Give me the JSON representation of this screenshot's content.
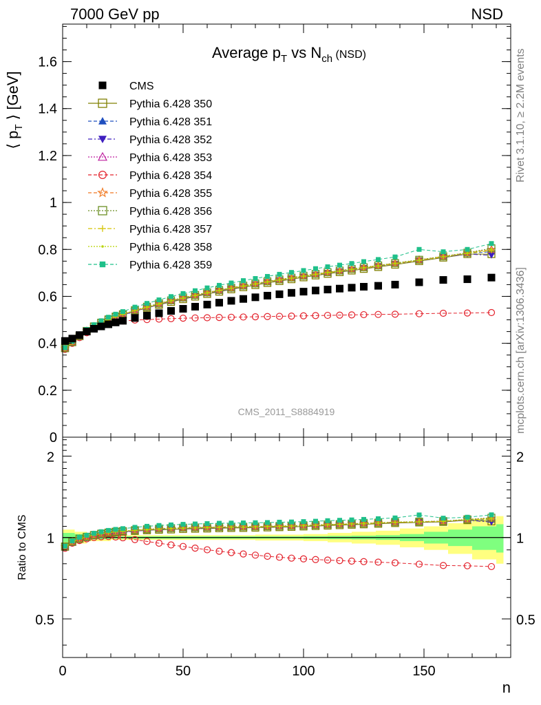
{
  "header": {
    "left": "7000 GeV pp",
    "right": "NSD"
  },
  "side_labels": {
    "top": "Rivet 3.1.10, ≥ 2.2M events",
    "bottom": "mcplots.cern.ch [arXiv:1306.3436]"
  },
  "watermark": "CMS_2011_S8884919",
  "chart_data": [
    {
      "type": "scatter",
      "title": "Average p_T vs N_ch (NSD)",
      "title_parts": {
        "main": "Average p",
        "sub1": "T",
        "mid": " vs N",
        "sub2": "ch",
        "tail": " (NSD)"
      },
      "xlabel": "n",
      "ylabel": "⟨ p_T ⟩ [GeV]",
      "ylabel_parts": {
        "left": "⟨ p",
        "sub": "T",
        "right": " ⟩ [GeV]"
      },
      "xlim": [
        0,
        186
      ],
      "ylim": [
        0,
        1.76
      ],
      "x_ticks": [
        0,
        50,
        100,
        150
      ],
      "x_tick_labels": [
        "0",
        "50",
        "100",
        "150"
      ],
      "y_ticks": [
        0,
        0.2,
        0.4,
        0.6,
        0.8,
        1.0,
        1.2,
        1.4,
        1.6
      ],
      "y_tick_labels": [
        "0",
        "0.2",
        "0.4",
        "0.6",
        "0.8",
        "1",
        "1.2",
        "1.4",
        "1.6"
      ],
      "legend_position": "top-left",
      "x": [
        1,
        4,
        7,
        10,
        13,
        16,
        19,
        22,
        25,
        30,
        35,
        40,
        45,
        50,
        55,
        60,
        65,
        70,
        75,
        80,
        85,
        90,
        95,
        100,
        105,
        110,
        115,
        120,
        125,
        131,
        138,
        148,
        158,
        168,
        178
      ],
      "cms": {
        "name": "CMS",
        "values": [
          0.41,
          0.42,
          0.435,
          0.45,
          0.462,
          0.472,
          0.481,
          0.489,
          0.496,
          0.508,
          0.518,
          0.528,
          0.538,
          0.547,
          0.556,
          0.565,
          0.573,
          0.581,
          0.589,
          0.596,
          0.603,
          0.609,
          0.615,
          0.62,
          0.625,
          0.629,
          0.633,
          0.637,
          0.641,
          0.645,
          0.65,
          0.66,
          0.67,
          0.673,
          0.68
        ]
      },
      "series": [
        {
          "name": "Pythia 6.428 350",
          "marker": "open-square",
          "color": "#808000",
          "dash": "",
          "values": [
            0.38,
            0.405,
            0.43,
            0.452,
            0.471,
            0.487,
            0.5,
            0.511,
            0.521,
            0.537,
            0.551,
            0.564,
            0.576,
            0.588,
            0.599,
            0.61,
            0.62,
            0.63,
            0.639,
            0.648,
            0.657,
            0.665,
            0.673,
            0.681,
            0.689,
            0.696,
            0.703,
            0.71,
            0.717,
            0.725,
            0.735,
            0.75,
            0.765,
            0.78,
            0.78
          ]
        },
        {
          "name": "Pythia 6.428 351",
          "marker": "filled-triangle-up",
          "color": "#1f4fbf",
          "dash": "5,3",
          "values": [
            0.377,
            0.402,
            0.427,
            0.449,
            0.468,
            0.484,
            0.498,
            0.51,
            0.52,
            0.537,
            0.552,
            0.566,
            0.579,
            0.591,
            0.602,
            0.613,
            0.623,
            0.633,
            0.643,
            0.652,
            0.661,
            0.669,
            0.677,
            0.685,
            0.693,
            0.7,
            0.707,
            0.714,
            0.721,
            0.729,
            0.739,
            0.754,
            0.769,
            0.783,
            0.79
          ]
        },
        {
          "name": "Pythia 6.428 352",
          "marker": "filled-triangle-down",
          "color": "#3f1fbf",
          "dash": "6,3,2,3",
          "values": [
            0.376,
            0.401,
            0.426,
            0.448,
            0.467,
            0.483,
            0.497,
            0.509,
            0.519,
            0.536,
            0.551,
            0.565,
            0.578,
            0.59,
            0.601,
            0.612,
            0.622,
            0.632,
            0.642,
            0.651,
            0.66,
            0.668,
            0.676,
            0.684,
            0.692,
            0.699,
            0.706,
            0.713,
            0.72,
            0.728,
            0.738,
            0.752,
            0.767,
            0.78,
            0.775
          ]
        },
        {
          "name": "Pythia 6.428 353",
          "marker": "open-triangle-up",
          "color": "#bf1f9f",
          "dash": "2,2",
          "values": [
            0.377,
            0.402,
            0.428,
            0.45,
            0.469,
            0.485,
            0.499,
            0.511,
            0.521,
            0.538,
            0.553,
            0.567,
            0.58,
            0.592,
            0.603,
            0.614,
            0.624,
            0.634,
            0.644,
            0.653,
            0.662,
            0.67,
            0.678,
            0.686,
            0.694,
            0.701,
            0.708,
            0.715,
            0.722,
            0.73,
            0.74,
            0.755,
            0.77,
            0.785,
            0.8
          ]
        },
        {
          "name": "Pythia 6.428 354",
          "marker": "open-circle",
          "color": "#e3202a",
          "dash": "5,3",
          "values": [
            0.374,
            0.4,
            0.424,
            0.445,
            0.462,
            0.475,
            0.485,
            0.491,
            0.495,
            0.499,
            0.501,
            0.503,
            0.505,
            0.507,
            0.508,
            0.509,
            0.51,
            0.511,
            0.512,
            0.513,
            0.514,
            0.515,
            0.516,
            0.517,
            0.518,
            0.519,
            0.52,
            0.521,
            0.522,
            0.523,
            0.524,
            0.526,
            0.528,
            0.529,
            0.531
          ]
        },
        {
          "name": "Pythia 6.428 355",
          "marker": "open-star",
          "color": "#f07820",
          "dash": "5,3",
          "values": [
            0.378,
            0.404,
            0.43,
            0.452,
            0.471,
            0.487,
            0.501,
            0.513,
            0.523,
            0.54,
            0.555,
            0.569,
            0.582,
            0.594,
            0.605,
            0.616,
            0.626,
            0.636,
            0.645,
            0.654,
            0.663,
            0.671,
            0.679,
            0.687,
            0.695,
            0.702,
            0.709,
            0.716,
            0.723,
            0.731,
            0.741,
            0.755,
            0.77,
            0.785,
            0.8
          ]
        },
        {
          "name": "Pythia 6.428 356",
          "marker": "open-square",
          "color": "#6b8e23",
          "dash": "2,2",
          "values": [
            0.379,
            0.405,
            0.431,
            0.453,
            0.472,
            0.488,
            0.502,
            0.514,
            0.524,
            0.541,
            0.556,
            0.57,
            0.583,
            0.595,
            0.606,
            0.617,
            0.627,
            0.637,
            0.646,
            0.655,
            0.664,
            0.672,
            0.68,
            0.688,
            0.696,
            0.703,
            0.71,
            0.717,
            0.724,
            0.732,
            0.742,
            0.756,
            0.771,
            0.786,
            0.805
          ]
        },
        {
          "name": "Pythia 6.428 357",
          "marker": "small-star",
          "color": "#d4c400",
          "dash": "6,3,2,3",
          "values": [
            0.378,
            0.404,
            0.43,
            0.452,
            0.471,
            0.487,
            0.501,
            0.513,
            0.523,
            0.539,
            0.553,
            0.567,
            0.58,
            0.592,
            0.603,
            0.614,
            0.624,
            0.634,
            0.643,
            0.652,
            0.661,
            0.669,
            0.677,
            0.685,
            0.693,
            0.7,
            0.707,
            0.714,
            0.721,
            0.729,
            0.739,
            0.753,
            0.768,
            0.783,
            0.795
          ]
        },
        {
          "name": "Pythia 6.428 358",
          "marker": "dot",
          "color": "#b8d400",
          "dash": "2,2",
          "values": [
            0.379,
            0.405,
            0.431,
            0.453,
            0.472,
            0.488,
            0.502,
            0.514,
            0.524,
            0.54,
            0.554,
            0.568,
            0.581,
            0.593,
            0.604,
            0.615,
            0.625,
            0.635,
            0.644,
            0.653,
            0.662,
            0.67,
            0.678,
            0.686,
            0.694,
            0.701,
            0.708,
            0.715,
            0.722,
            0.73,
            0.74,
            0.754,
            0.769,
            0.784,
            0.8
          ]
        },
        {
          "name": "Pythia 6.428 359",
          "marker": "filled-square-small",
          "color": "#1fc08a",
          "dash": "5,3",
          "values": [
            0.381,
            0.408,
            0.436,
            0.459,
            0.479,
            0.496,
            0.511,
            0.524,
            0.535,
            0.554,
            0.57,
            0.585,
            0.599,
            0.612,
            0.624,
            0.636,
            0.647,
            0.657,
            0.667,
            0.676,
            0.685,
            0.694,
            0.702,
            0.71,
            0.718,
            0.726,
            0.733,
            0.74,
            0.748,
            0.757,
            0.768,
            0.8,
            0.79,
            0.8,
            0.825
          ]
        }
      ]
    },
    {
      "type": "scatter",
      "title": "",
      "xlabel": "n",
      "ylabel": "Ratio to CMS",
      "xlim": [
        0,
        186
      ],
      "ylim": [
        0.36,
        2.35
      ],
      "log_y": true,
      "y_ticks": [
        0.5,
        1,
        2
      ],
      "y_tick_labels": [
        "0.5",
        "1",
        "2"
      ],
      "x_ticks": [
        0,
        50,
        100,
        150
      ],
      "x_tick_labels": [
        "0",
        "50",
        "100",
        "150"
      ],
      "reference_line": 1,
      "uncertainty_band": {
        "x": [
          0,
          5,
          10,
          20,
          40,
          60,
          80,
          100,
          110,
          120,
          130,
          140,
          150,
          160,
          170,
          180,
          183
        ],
        "stat_half_width": [
          0.04,
          0.03,
          0.015,
          0.01,
          0.01,
          0.01,
          0.01,
          0.012,
          0.014,
          0.016,
          0.02,
          0.03,
          0.05,
          0.07,
          0.1,
          0.12,
          0.12
        ],
        "total_half_width": [
          0.07,
          0.05,
          0.03,
          0.02,
          0.02,
          0.02,
          0.025,
          0.03,
          0.04,
          0.05,
          0.06,
          0.08,
          0.1,
          0.13,
          0.17,
          0.2,
          0.2
        ],
        "stat_color": "#7fff7f",
        "total_color": "#ffff80"
      }
    }
  ]
}
